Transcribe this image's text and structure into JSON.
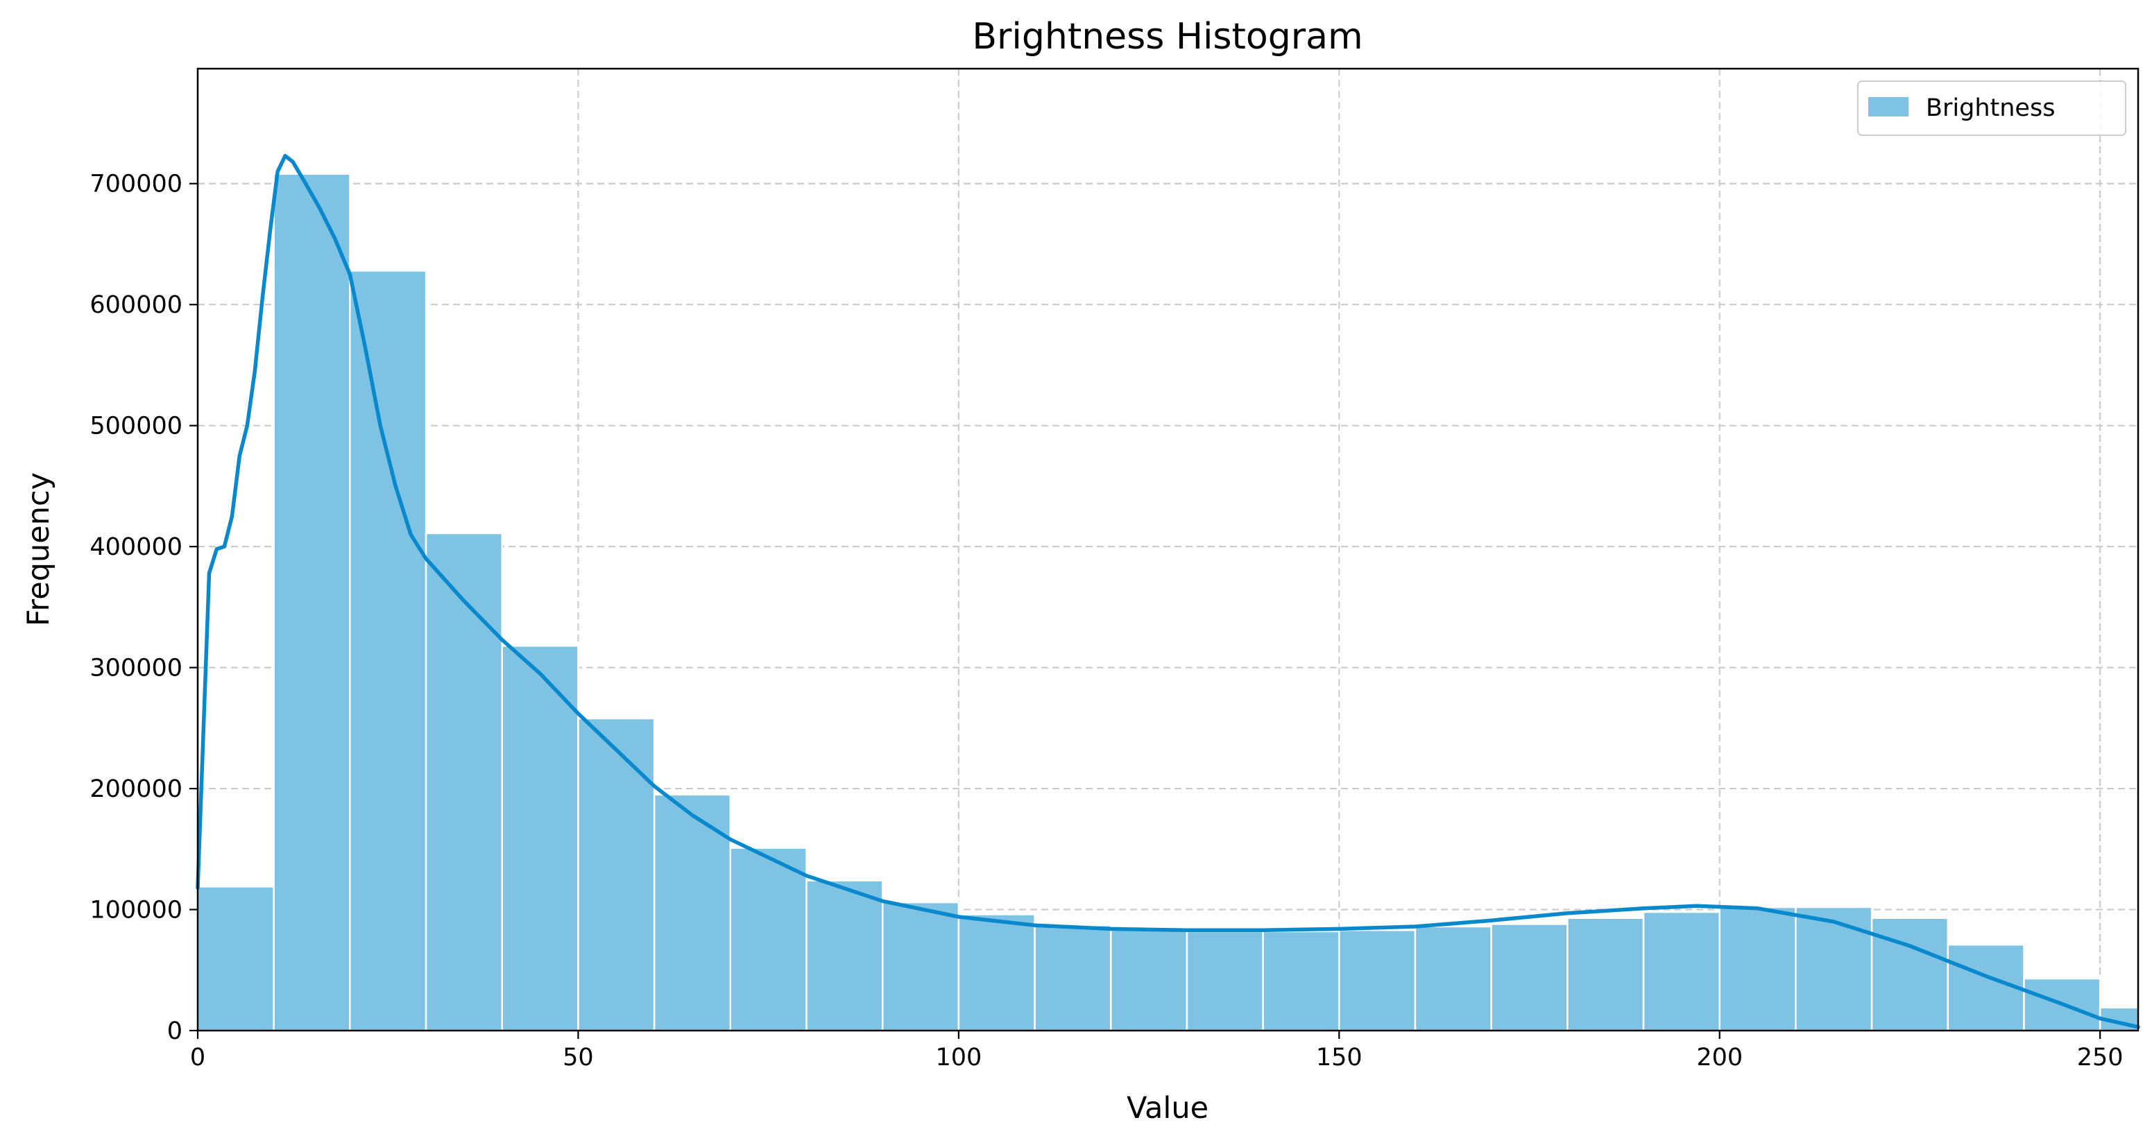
{
  "chart_data": {
    "type": "bar",
    "title": "Brightness Histogram",
    "xlabel": "Value",
    "ylabel": "Frequency",
    "xlim": [
      0,
      255
    ],
    "ylim": [
      0,
      795000
    ],
    "grid": true,
    "legend_position": "top-right",
    "bar_color": "#7fc3e4",
    "line_color": "#0a88cc",
    "x_ticks": [
      0,
      50,
      100,
      150,
      200,
      250
    ],
    "x_tick_labels": [
      "0",
      "50",
      "100",
      "150",
      "200",
      "250"
    ],
    "y_ticks": [
      0,
      100000,
      200000,
      300000,
      400000,
      500000,
      600000,
      700000
    ],
    "y_tick_labels": [
      "0",
      "100000",
      "200000",
      "300000",
      "400000",
      "500000",
      "600000",
      "700000"
    ],
    "bin_edges": [
      0,
      10,
      20,
      30,
      40,
      50,
      60,
      70,
      80,
      90,
      100,
      110,
      120,
      130,
      140,
      150,
      160,
      170,
      180,
      190,
      200,
      210,
      220,
      230,
      240,
      250,
      255
    ],
    "bin_counts": [
      119000,
      708000,
      628000,
      411000,
      318000,
      258000,
      195000,
      151000,
      124000,
      106000,
      96000,
      87000,
      84000,
      82000,
      82000,
      83000,
      86000,
      88000,
      93000,
      98000,
      102000,
      102000,
      93000,
      71000,
      43000,
      19000
    ],
    "series": [
      {
        "name": "Brightness",
        "kind": "histogram"
      },
      {
        "kind": "density_curve",
        "x": [
          0,
          1.5,
          2.5,
          3.5,
          4.5,
          5.5,
          6.5,
          7.5,
          8.5,
          9.5,
          10.5,
          11.5,
          12.5,
          14,
          16,
          18,
          20,
          22,
          24,
          26,
          28,
          30,
          35,
          40,
          45,
          50,
          55,
          60,
          65,
          70,
          80,
          90,
          100,
          110,
          120,
          130,
          140,
          150,
          160,
          170,
          180,
          190,
          197,
          205,
          215,
          225,
          235,
          245,
          250,
          255
        ],
        "y": [
          118000,
          378000,
          398000,
          400000,
          425000,
          475000,
          500000,
          545000,
          605000,
          660000,
          710000,
          723000,
          718000,
          702000,
          680000,
          655000,
          625000,
          565000,
          500000,
          450000,
          410000,
          390000,
          355000,
          323000,
          295000,
          262000,
          232000,
          202000,
          178000,
          158000,
          128000,
          107000,
          94000,
          87000,
          84000,
          83000,
          83000,
          84000,
          86000,
          91000,
          97000,
          101000,
          103000,
          101000,
          90000,
          70000,
          45000,
          22000,
          10000,
          3000
        ]
      }
    ]
  }
}
